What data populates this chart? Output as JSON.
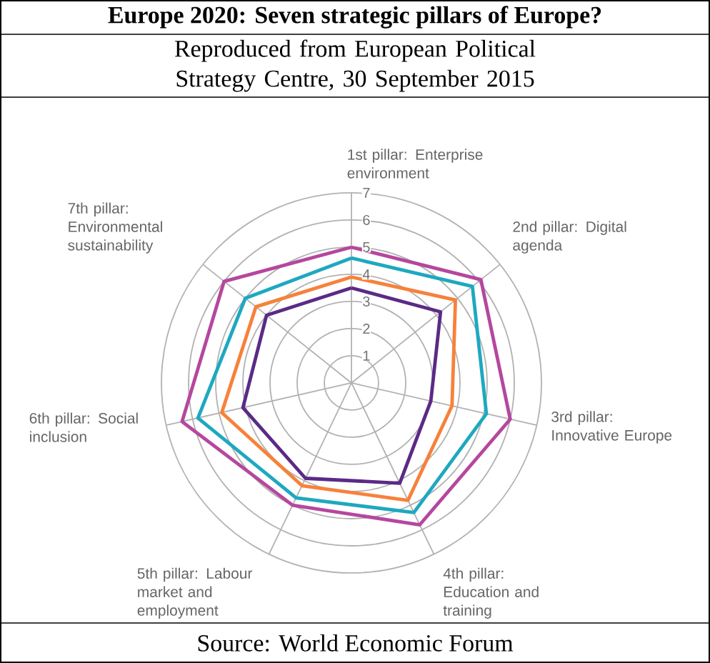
{
  "chart_data": {
    "type": "radar",
    "title": "Europe 2020: Seven strategic pillars of Europe?",
    "subtitle": "Reproduced from European Political Strategy Centre, 30 September 2015",
    "categories": [
      "1st pillar: Enterprise environment",
      "2nd pillar: Digital agenda",
      "3rd pillar: Innovative Europe",
      "4th pillar: Education and training",
      "5th pillar: Labour market and employment",
      "6th pillar: Social inclusion",
      "7th pillar: Environmental sustainability"
    ],
    "series": [
      {
        "color": "#b5479e",
        "values": [
          5.0,
          6.1,
          6.0,
          5.8,
          5.0,
          6.4,
          6.0
        ]
      },
      {
        "color": "#1ea8c0",
        "values": [
          4.6,
          5.7,
          5.1,
          5.3,
          4.7,
          5.8,
          5.0
        ]
      },
      {
        "color": "#f7813a",
        "values": [
          3.9,
          4.9,
          3.8,
          4.8,
          4.2,
          4.9,
          4.5
        ]
      },
      {
        "color": "#5b2a86",
        "values": [
          3.5,
          4.2,
          3.0,
          4.1,
          3.9,
          4.1,
          4.0
        ]
      }
    ],
    "ylim": [
      0,
      7
    ],
    "yticks": [
      1,
      2,
      3,
      4,
      5,
      6,
      7
    ],
    "grid": true,
    "marker": "none",
    "line_style": "solid",
    "annotations": [
      "Source: World Economic Forum"
    ]
  }
}
